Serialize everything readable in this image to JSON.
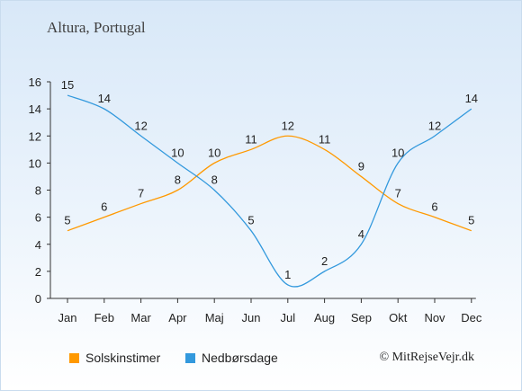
{
  "title": "Altura, Portugal",
  "credit": "© MitRejseVejr.dk",
  "colors": {
    "sun": "#ff9900",
    "rain": "#3399dd",
    "axis": "#333333",
    "text": "#222222"
  },
  "chart_data": {
    "type": "line",
    "title": "Altura, Portugal",
    "categories": [
      "Jan",
      "Feb",
      "Mar",
      "Apr",
      "Maj",
      "Jun",
      "Jul",
      "Aug",
      "Sep",
      "Okt",
      "Nov",
      "Dec"
    ],
    "series": [
      {
        "name": "Solskinstimer",
        "values": [
          5,
          6,
          7,
          8,
          10,
          11,
          12,
          11,
          9,
          7,
          6,
          5
        ]
      },
      {
        "name": "Nedbørsdage",
        "values": [
          15,
          14,
          12,
          10,
          8,
          5,
          1,
          2,
          4,
          10,
          12,
          14
        ]
      }
    ],
    "ylim": [
      0,
      16
    ],
    "yticks": [
      0,
      2,
      4,
      6,
      8,
      10,
      12,
      14,
      16
    ],
    "grid": false,
    "legend": "bottom-left"
  }
}
